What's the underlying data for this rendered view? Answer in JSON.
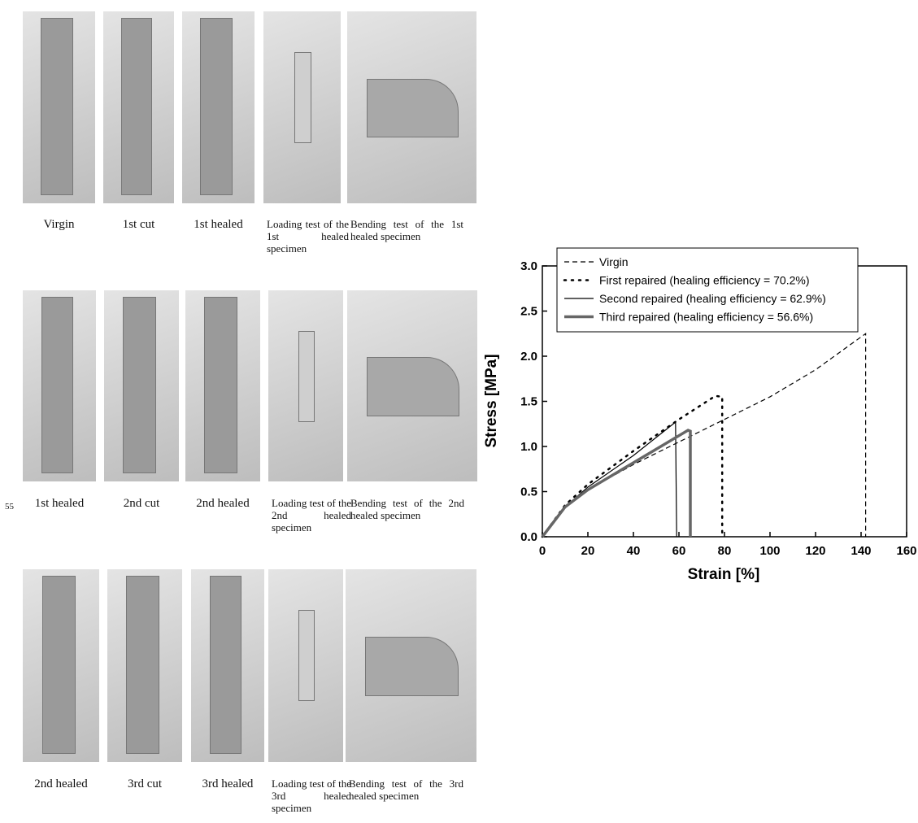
{
  "photo_panels": {
    "line_number": "55",
    "rows": [
      [
        "Virgin",
        "1st cut",
        "1st healed",
        "Loading test of the 1st healed specimen",
        "Bending test of the 1st healed specimen"
      ],
      [
        "1st healed",
        "2nd cut",
        "2nd healed",
        "Loading test of the 2nd healed specimen",
        "Bending test of the 2nd healed specimen"
      ],
      [
        "2nd healed",
        "3rd cut",
        "3rd healed",
        "Loading test of the 3rd healed specimen",
        "Bending test of the 3rd healed specimen"
      ]
    ]
  },
  "chart_data": {
    "type": "line",
    "x_label": "Strain  [%]",
    "y_label": "Stress  [MPa]",
    "xlim": [
      0,
      160
    ],
    "xticks": [
      0,
      20,
      40,
      60,
      80,
      100,
      120,
      140,
      160
    ],
    "ylim": [
      0,
      3
    ],
    "yticks": [
      {
        "value": 0,
        "label": "0.0"
      },
      0.5,
      {
        "value": 1,
        "label": "1.0"
      },
      1.5,
      {
        "value": 2,
        "label": "2.0"
      },
      2.5,
      {
        "value": 3,
        "label": "3.0"
      }
    ],
    "series": [
      {
        "name": "Virgin",
        "color": "#000000",
        "dash": "dashed",
        "width": 1.2,
        "x": [
          0,
          10,
          20,
          40,
          60,
          80,
          100,
          120,
          142,
          142
        ],
        "values": [
          0,
          0.33,
          0.52,
          0.8,
          1.05,
          1.3,
          1.55,
          1.85,
          2.25,
          0
        ]
      },
      {
        "name": "First repaired (healing efficiency = 70.2%)",
        "color": "#000000",
        "dash": "dotted",
        "width": 2.5,
        "x": [
          0,
          10,
          20,
          40,
          60,
          76,
          79,
          79
        ],
        "values": [
          0,
          0.35,
          0.58,
          0.95,
          1.3,
          1.56,
          1.55,
          0
        ]
      },
      {
        "name": "Second repaired (healing efficiency = 62.9%)",
        "color": "#000000",
        "dash": "solid",
        "width": 1.2,
        "x": [
          0,
          10,
          20,
          40,
          58.5,
          59
        ],
        "values": [
          0,
          0.33,
          0.55,
          0.9,
          1.27,
          0
        ]
      },
      {
        "name": "Third repaired (healing efficiency = 56.6%)",
        "color": "#666666",
        "dash": "solid",
        "width": 3.5,
        "x": [
          0,
          10,
          20,
          40,
          64,
          65,
          65
        ],
        "values": [
          0,
          0.33,
          0.52,
          0.82,
          1.18,
          1.17,
          0
        ]
      }
    ]
  }
}
